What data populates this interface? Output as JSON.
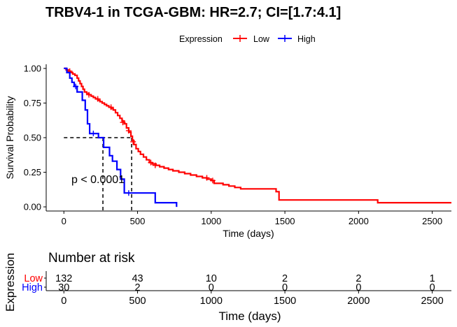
{
  "chart_data": [
    {
      "type": "line",
      "subtype": "kaplan-meier",
      "title": "TRBV4-1 in TCGA-GBM: HR=2.7; CI=[1.7:4.1]",
      "xlabel": "Time (days)",
      "ylabel": "Survival Probability",
      "xlim": [
        -120,
        2630
      ],
      "ylim": [
        -0.03,
        1.03
      ],
      "xticks": [
        0,
        500,
        1000,
        1500,
        2000,
        2500
      ],
      "yticks": [
        0,
        0.25,
        0.5,
        0.75,
        1
      ],
      "ytick_labels": [
        "0.00",
        "0.25",
        "0.50",
        "0.75",
        "1.00"
      ],
      "legend": {
        "title": "Expression",
        "position": "top"
      },
      "grid": false,
      "annotation": "p < 0.0001",
      "median_lines": {
        "y": 0.5,
        "x": [
          265,
          460
        ]
      },
      "series": [
        {
          "name": "Low",
          "color": "#ff0000",
          "steps": [
            [
              0,
              1.0
            ],
            [
              15,
              0.99
            ],
            [
              30,
              0.98
            ],
            [
              45,
              0.97
            ],
            [
              60,
              0.96
            ],
            [
              75,
              0.95
            ],
            [
              90,
              0.93
            ],
            [
              100,
              0.91
            ],
            [
              110,
              0.89
            ],
            [
              120,
              0.87
            ],
            [
              130,
              0.85
            ],
            [
              140,
              0.83
            ],
            [
              155,
              0.82
            ],
            [
              170,
              0.81
            ],
            [
              185,
              0.8
            ],
            [
              200,
              0.79
            ],
            [
              215,
              0.78
            ],
            [
              230,
              0.77
            ],
            [
              245,
              0.76
            ],
            [
              260,
              0.75
            ],
            [
              275,
              0.74
            ],
            [
              290,
              0.73
            ],
            [
              305,
              0.72
            ],
            [
              320,
              0.71
            ],
            [
              335,
              0.7
            ],
            [
              350,
              0.68
            ],
            [
              365,
              0.66
            ],
            [
              380,
              0.64
            ],
            [
              395,
              0.62
            ],
            [
              410,
              0.6
            ],
            [
              425,
              0.57
            ],
            [
              440,
              0.54
            ],
            [
              455,
              0.51
            ],
            [
              465,
              0.48
            ],
            [
              475,
              0.45
            ],
            [
              490,
              0.42
            ],
            [
              505,
              0.4
            ],
            [
              520,
              0.38
            ],
            [
              540,
              0.36
            ],
            [
              560,
              0.34
            ],
            [
              580,
              0.32
            ],
            [
              600,
              0.31
            ],
            [
              625,
              0.3
            ],
            [
              650,
              0.29
            ],
            [
              680,
              0.28
            ],
            [
              710,
              0.27
            ],
            [
              740,
              0.26
            ],
            [
              780,
              0.25
            ],
            [
              820,
              0.24
            ],
            [
              860,
              0.23
            ],
            [
              900,
              0.22
            ],
            [
              940,
              0.21
            ],
            [
              970,
              0.2
            ],
            [
              1000,
              0.19
            ],
            [
              1020,
              0.17
            ],
            [
              1080,
              0.16
            ],
            [
              1120,
              0.15
            ],
            [
              1160,
              0.14
            ],
            [
              1200,
              0.13
            ],
            [
              1440,
              0.11
            ],
            [
              1460,
              0.05
            ],
            [
              2130,
              0.03
            ],
            [
              2630,
              0.03
            ]
          ],
          "censored": [
            [
              40,
              0.98
            ],
            [
              170,
              0.81
            ],
            [
              230,
              0.78
            ],
            [
              320,
              0.72
            ],
            [
              400,
              0.61
            ],
            [
              440,
              0.55
            ],
            [
              470,
              0.47
            ],
            [
              590,
              0.32
            ],
            [
              620,
              0.3
            ],
            [
              970,
              0.21
            ],
            [
              1010,
              0.19
            ]
          ]
        },
        {
          "name": "High",
          "color": "#0000ff",
          "steps": [
            [
              0,
              1.0
            ],
            [
              20,
              0.97
            ],
            [
              40,
              0.93
            ],
            [
              55,
              0.9
            ],
            [
              70,
              0.87
            ],
            [
              90,
              0.83
            ],
            [
              125,
              0.77
            ],
            [
              145,
              0.7
            ],
            [
              160,
              0.6
            ],
            [
              175,
              0.53
            ],
            [
              235,
              0.5
            ],
            [
              270,
              0.43
            ],
            [
              310,
              0.37
            ],
            [
              330,
              0.33
            ],
            [
              360,
              0.27
            ],
            [
              385,
              0.2
            ],
            [
              410,
              0.1
            ],
            [
              620,
              0.03
            ],
            [
              765,
              0
            ]
          ],
          "censored": [
            [
              80,
              0.87
            ],
            [
              200,
              0.53
            ],
            [
              440,
              0.1
            ]
          ]
        }
      ]
    },
    {
      "type": "table",
      "title": "Number at risk",
      "xlabel": "Time (days)",
      "ylabel": "Expression",
      "xlim": [
        -120,
        2630
      ],
      "x": [
        0,
        500,
        1000,
        1500,
        2000,
        2500
      ],
      "rows": [
        {
          "name": "Low",
          "color": "#ff0000",
          "values": [
            132,
            43,
            10,
            2,
            2,
            1
          ]
        },
        {
          "name": "High",
          "color": "#0000ff",
          "values": [
            30,
            2,
            0,
            0,
            0,
            0
          ]
        }
      ]
    }
  ]
}
